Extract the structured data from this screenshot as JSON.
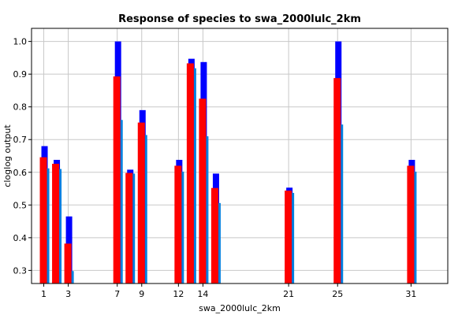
{
  "chart_data": {
    "type": "bar",
    "title": "Response of species to swa_2000lulc_2km",
    "xlabel": "swa_2000lulc_2km",
    "ylabel": "cloglog output",
    "xlim": [
      0,
      34
    ],
    "ylim": [
      0.26,
      1.04
    ],
    "xticks": [
      1,
      3,
      7,
      9,
      12,
      14,
      21,
      25,
      31
    ],
    "yticks": [
      0.3,
      0.4,
      0.5,
      0.6,
      0.7,
      0.8,
      0.9,
      1.0
    ],
    "ytick_labels": [
      "0.3",
      "0.4",
      "0.5",
      "0.6",
      "0.7",
      "0.8",
      "0.9",
      "1.0"
    ],
    "grid": true,
    "categories": [
      1,
      2,
      3,
      7,
      8,
      9,
      12,
      13,
      14,
      15,
      21,
      25,
      31
    ],
    "series": [
      {
        "role": "upper",
        "values": [
          0.68,
          0.638,
          0.465,
          1.0,
          0.608,
          0.79,
          0.638,
          0.947,
          0.937,
          0.596,
          0.553,
          1.0,
          0.638
        ],
        "color": "#0000ff"
      },
      {
        "role": "mean",
        "values": [
          0.646,
          0.626,
          0.382,
          0.893,
          0.598,
          0.752,
          0.62,
          0.933,
          0.825,
          0.552,
          0.544,
          0.888,
          0.62
        ],
        "color": "#ff0000"
      },
      {
        "role": "lower",
        "values": [
          0.612,
          0.61,
          0.298,
          0.76,
          0.596,
          0.714,
          0.602,
          0.918,
          0.71,
          0.506,
          0.537,
          0.746,
          0.602
        ],
        "color": "#0080e0"
      }
    ]
  }
}
